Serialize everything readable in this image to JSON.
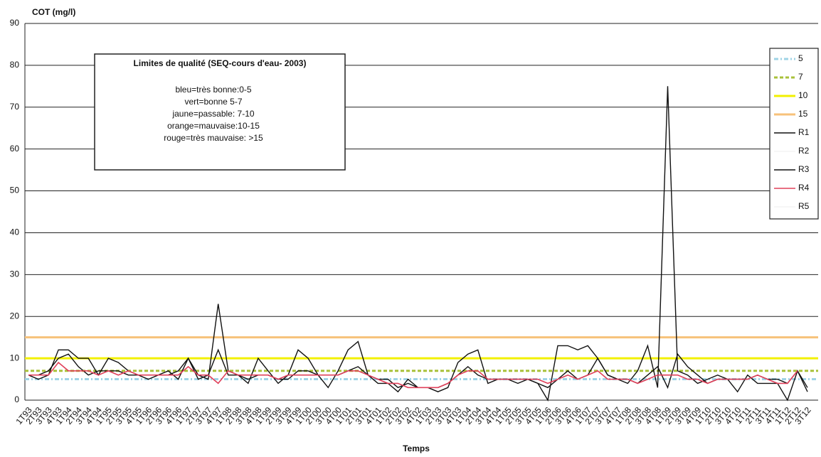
{
  "chart_data": {
    "type": "line",
    "y_label": "COT (mg/l)",
    "x_label": "Temps",
    "categories": [
      "1T93",
      "2T93",
      "3T93",
      "4T93",
      "1T94",
      "2T94",
      "3T94",
      "4T94",
      "1T95",
      "2T95",
      "3T95",
      "4T95",
      "1T96",
      "2T96",
      "3T96",
      "4T96",
      "1T97",
      "2T97",
      "3T97",
      "4T97",
      "1T98",
      "2T98",
      "3T98",
      "4T98",
      "1T99",
      "2T99",
      "3T99",
      "4T99",
      "1T00",
      "2T00",
      "3T00",
      "4T00",
      "1T01",
      "2T01",
      "3T01",
      "4T01",
      "1T02",
      "2T02",
      "3T02",
      "4T02",
      "1T03",
      "2T03",
      "3T03",
      "4T03",
      "1T04",
      "2T04",
      "3T04",
      "4T04",
      "1T05",
      "2T05",
      "3T05",
      "4T05",
      "1T06",
      "2T06",
      "3T06",
      "4T06",
      "1T07",
      "2T07",
      "3T07",
      "4T07",
      "1T08",
      "2T08",
      "3T08",
      "4T08",
      "1T09",
      "2T09",
      "3T09",
      "4T09",
      "1T10",
      "2T10",
      "3T10",
      "4T10",
      "1T11",
      "2T11",
      "3T11",
      "4T11",
      "1T12",
      "2T12",
      "3T12"
    ],
    "thresholds": [
      {
        "name": "5",
        "value": 5,
        "color": "#9fd3e6",
        "dash": "6 3 2 3"
      },
      {
        "name": "7",
        "value": 7,
        "color": "#a9c13a",
        "dash": "5 3"
      },
      {
        "name": "10",
        "value": 10,
        "color": "#f2f000",
        "dash": ""
      },
      {
        "name": "15",
        "value": 15,
        "color": "#f7c27a",
        "dash": ""
      }
    ],
    "series": [
      {
        "name": "R1",
        "color": "#111111",
        "values": [
          6,
          5,
          6,
          12,
          12,
          10,
          10,
          6,
          10,
          9,
          7,
          6,
          6,
          6,
          7,
          5,
          10,
          6,
          5,
          23,
          7,
          6,
          4,
          10,
          7,
          4,
          6,
          12,
          10,
          6,
          3,
          7,
          12,
          14,
          6,
          4,
          4,
          2,
          5,
          3,
          3,
          2,
          3,
          9,
          11,
          12,
          4,
          5,
          5,
          4,
          5,
          4,
          0,
          13,
          13,
          12,
          13,
          10,
          6,
          5,
          4,
          7,
          13,
          3,
          75,
          7,
          6,
          4,
          5,
          6,
          5,
          2,
          6,
          4,
          4,
          4,
          0,
          7,
          2
        ]
      },
      {
        "name": "R2",
        "color": "#f4f4f4"
      },
      {
        "name": "R3",
        "color": "#111111",
        "values": [
          6,
          6,
          7,
          10,
          11,
          8,
          6,
          7,
          7,
          7,
          6,
          6,
          5,
          6,
          6,
          7,
          10,
          5,
          6,
          12,
          6,
          6,
          5,
          6,
          6,
          5,
          5,
          7,
          7,
          6,
          6,
          6,
          7,
          8,
          6,
          5,
          5,
          3,
          4,
          3,
          3,
          3,
          4,
          6,
          8,
          6,
          5,
          5,
          5,
          5,
          5,
          4,
          3,
          5,
          7,
          5,
          6,
          10,
          6,
          5,
          5,
          4,
          6,
          8,
          3,
          11,
          8,
          6,
          4,
          5,
          5,
          5,
          5,
          6,
          5,
          5,
          4,
          7,
          3
        ]
      },
      {
        "name": "R4",
        "color": "#e0405a",
        "values": [
          6,
          6,
          6,
          9,
          7,
          7,
          7,
          6,
          7,
          6,
          7,
          6,
          6,
          6,
          6,
          6,
          8,
          6,
          6,
          4,
          7,
          6,
          6,
          6,
          6,
          5,
          6,
          6,
          6,
          6,
          6,
          6,
          7,
          7,
          6,
          5,
          4,
          4,
          3,
          3,
          3,
          3,
          4,
          6,
          7,
          7,
          5,
          5,
          5,
          5,
          5,
          5,
          4,
          5,
          6,
          5,
          6,
          7,
          5,
          5,
          5,
          4,
          5,
          6,
          6,
          6,
          5,
          5,
          4,
          5,
          5,
          5,
          5,
          6,
          5,
          4,
          4,
          7,
          null
        ]
      },
      {
        "name": "R5",
        "color": "#f4f4f4"
      }
    ],
    "ylim": [
      0,
      90
    ],
    "yticks": [
      0,
      10,
      20,
      30,
      40,
      50,
      60,
      70,
      80,
      90
    ],
    "grid": true,
    "annotation": {
      "title": "Limites de qualité (SEQ-cours d'eau- 2003)",
      "lines": [
        {
          "text": "bleu=très bonne:0-5",
          "color": "#2a7fc0"
        },
        {
          "text": "vert=bonne 5-7",
          "color": "#111111"
        },
        {
          "text": "jaune=passable: 7-10",
          "color": "#e8e000"
        },
        {
          "text": "orange=mauvaise:10-15",
          "color": "#f0a070"
        },
        {
          "text": "rouge=très mauvaise: >15",
          "color": "#d83030"
        }
      ]
    }
  }
}
